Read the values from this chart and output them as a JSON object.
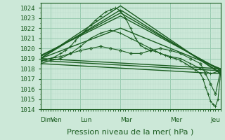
{
  "bg_color": "#cce8d8",
  "grid_color_major": "#99ccb0",
  "grid_color_minor": "#bbddcc",
  "line_color": "#1a5c20",
  "xlabel": "Pression niveau de la mer( hPa )",
  "ylim": [
    1014,
    1024.5
  ],
  "yticks": [
    1014,
    1015,
    1016,
    1017,
    1018,
    1019,
    1020,
    1021,
    1022,
    1023,
    1024
  ],
  "day_labels": [
    "Dim",
    "Ven",
    "Lun",
    "Mar",
    "Mer",
    "Jeu"
  ],
  "day_positions": [
    0,
    12,
    48,
    96,
    156,
    204
  ],
  "total_hours": 216,
  "xlabel_fontsize": 8,
  "tick_fontsize": 6.5,
  "series": [
    {
      "x": [
        0,
        6,
        12,
        18,
        24,
        30,
        36,
        42,
        48,
        54,
        60,
        66,
        72,
        78,
        84,
        90,
        96,
        102,
        108,
        114,
        120,
        126,
        132,
        138,
        144,
        150,
        156,
        162,
        168,
        174,
        180,
        186,
        192,
        195,
        198,
        201,
        204,
        207,
        210,
        213,
        216
      ],
      "y": [
        1018.8,
        1018.9,
        1019.0,
        1019.2,
        1019.5,
        1019.8,
        1020.2,
        1020.8,
        1021.3,
        1021.8,
        1022.3,
        1022.8,
        1023.2,
        1023.6,
        1023.8,
        1024.0,
        1023.7,
        1023.0,
        1022.0,
        1021.0,
        1020.3,
        1020.0,
        1019.8,
        1019.7,
        1019.5,
        1019.3,
        1019.1,
        1019.0,
        1018.8,
        1018.5,
        1018.2,
        1017.9,
        1017.5,
        1017.0,
        1016.2,
        1015.5,
        1014.8,
        1014.5,
        1014.3,
        1015.0,
        1017.5
      ],
      "marker": "+",
      "lw": 0.8,
      "ms": 3
    },
    {
      "x": [
        0,
        216
      ],
      "y": [
        1019.0,
        1018.0
      ],
      "marker": null,
      "lw": 1.0,
      "ms": 0
    },
    {
      "x": [
        0,
        216
      ],
      "y": [
        1018.5,
        1017.5
      ],
      "marker": null,
      "lw": 1.0,
      "ms": 0
    },
    {
      "x": [
        0,
        216
      ],
      "y": [
        1018.8,
        1017.8
      ],
      "marker": null,
      "lw": 1.0,
      "ms": 0
    },
    {
      "x": [
        0,
        96,
        216
      ],
      "y": [
        1019.0,
        1022.0,
        1018.0
      ],
      "marker": null,
      "lw": 1.0,
      "ms": 0
    },
    {
      "x": [
        0,
        96,
        216
      ],
      "y": [
        1019.2,
        1023.5,
        1017.8
      ],
      "marker": null,
      "lw": 1.0,
      "ms": 0
    },
    {
      "x": [
        0,
        96,
        216
      ],
      "y": [
        1019.0,
        1024.2,
        1017.5
      ],
      "marker": null,
      "lw": 1.0,
      "ms": 0
    },
    {
      "x": [
        0,
        96,
        216
      ],
      "y": [
        1019.0,
        1023.8,
        1017.6
      ],
      "marker": null,
      "lw": 1.0,
      "ms": 0
    },
    {
      "x": [
        0,
        96,
        216
      ],
      "y": [
        1019.3,
        1023.2,
        1017.9
      ],
      "marker": null,
      "lw": 1.0,
      "ms": 0
    },
    {
      "x": [
        0,
        12,
        24,
        36,
        48,
        60,
        72,
        84,
        96,
        108,
        120,
        132,
        144,
        156,
        168,
        180,
        192,
        198,
        204,
        210,
        216
      ],
      "y": [
        1018.8,
        1019.0,
        1019.2,
        1019.5,
        1019.8,
        1020.0,
        1020.2,
        1020.0,
        1019.8,
        1019.5,
        1019.5,
        1019.8,
        1020.0,
        1019.8,
        1019.5,
        1019.0,
        1018.5,
        1017.5,
        1016.5,
        1015.5,
        1017.8
      ],
      "marker": "D",
      "lw": 0.8,
      "ms": 2
    },
    {
      "x": [
        0,
        12,
        24,
        36,
        48,
        60,
        72,
        84,
        96,
        108,
        120,
        132,
        144,
        156,
        168,
        180,
        192,
        204,
        216
      ],
      "y": [
        1018.5,
        1018.8,
        1019.0,
        1019.5,
        1020.2,
        1021.0,
        1021.5,
        1021.8,
        1021.5,
        1021.0,
        1020.5,
        1020.0,
        1019.5,
        1019.2,
        1019.0,
        1018.5,
        1018.0,
        1017.5,
        1017.8
      ],
      "marker": "+",
      "lw": 0.8,
      "ms": 3
    }
  ]
}
